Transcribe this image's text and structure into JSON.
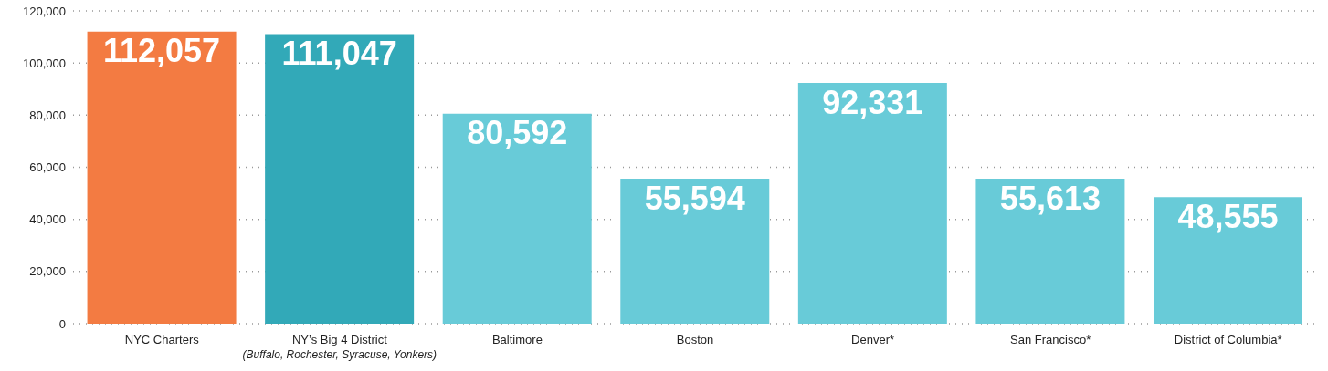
{
  "chart_data": {
    "type": "bar",
    "categories": [
      "NYC Charters",
      "NY’s Big 4 District\n(Buffalo, Rochester, Syracuse, Yonkers)",
      "Baltimore",
      "Boston",
      "Denver*",
      "San Francisco*",
      "District of Columbia*"
    ],
    "values": [
      112057,
      111047,
      80592,
      55594,
      92331,
      55613,
      48555
    ],
    "colors": [
      "#f37b42",
      "#32a9b8",
      "#68cbd8",
      "#68cbd8",
      "#68cbd8",
      "#68cbd8",
      "#68cbd8"
    ],
    "value_labels": [
      "112,057",
      "111,047",
      "80,592",
      "55,594",
      "92,331",
      "55,613",
      "48,555"
    ],
    "ylim": [
      0,
      120000
    ],
    "yticks": [
      {
        "value": 0,
        "label": "0"
      },
      {
        "value": 20000,
        "label": "20,000"
      },
      {
        "value": 40000,
        "label": "40,000"
      },
      {
        "value": 60000,
        "label": "60,000"
      },
      {
        "value": 80000,
        "label": "80,000"
      },
      {
        "value": 100000,
        "label": "100,000"
      },
      {
        "value": 120000,
        "label": "120,000"
      }
    ],
    "grid": "y"
  }
}
